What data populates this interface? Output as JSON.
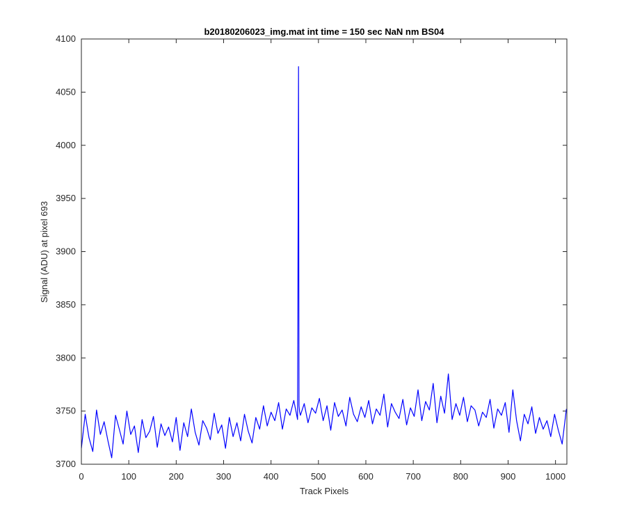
{
  "chart_data": {
    "type": "line",
    "title": "b20180206023_img.mat int time = 150 sec  NaN nm BS04",
    "xlabel": "Track Pixels",
    "ylabel": "Signal (ADU) at pixel 693",
    "xlim": [
      0,
      1024
    ],
    "ylim": [
      3700,
      4100
    ],
    "xticks": [
      0,
      100,
      200,
      300,
      400,
      500,
      600,
      700,
      800,
      900,
      1000
    ],
    "yticks": [
      3700,
      3750,
      3800,
      3850,
      3900,
      3950,
      4000,
      4050,
      4100
    ],
    "grid": false,
    "legend": "none",
    "line_color": "#0000ff",
    "series": [
      {
        "x": [
          0,
          8,
          16,
          24,
          32,
          40,
          48,
          56,
          64,
          72,
          80,
          88,
          96,
          104,
          112,
          120,
          128,
          136,
          144,
          152,
          160,
          168,
          176,
          184,
          192,
          200,
          208,
          216,
          224,
          232,
          240,
          248,
          256,
          264,
          272,
          280,
          288,
          296,
          304,
          312,
          320,
          328,
          336,
          344,
          352,
          360,
          368,
          376,
          384,
          392,
          400,
          408,
          416,
          424,
          432,
          440,
          448,
          456,
          458,
          459,
          460,
          462,
          470,
          478,
          486,
          494,
          502,
          510,
          518,
          526,
          534,
          542,
          550,
          558,
          566,
          574,
          582,
          590,
          598,
          606,
          614,
          622,
          630,
          638,
          646,
          654,
          662,
          670,
          678,
          686,
          694,
          702,
          710,
          718,
          726,
          734,
          742,
          750,
          758,
          766,
          774,
          782,
          790,
          798,
          806,
          814,
          822,
          830,
          838,
          846,
          854,
          862,
          870,
          878,
          886,
          894,
          902,
          910,
          918,
          926,
          934,
          942,
          950,
          958,
          966,
          974,
          982,
          990,
          998,
          1006,
          1014,
          1023
        ],
        "y": [
          3715,
          3747,
          3725,
          3712,
          3751,
          3728,
          3740,
          3722,
          3706,
          3746,
          3733,
          3719,
          3750,
          3728,
          3736,
          3711,
          3742,
          3725,
          3731,
          3745,
          3716,
          3738,
          3727,
          3735,
          3721,
          3744,
          3713,
          3739,
          3726,
          3752,
          3730,
          3718,
          3741,
          3734,
          3723,
          3748,
          3729,
          3737,
          3715,
          3744,
          3726,
          3739,
          3722,
          3747,
          3731,
          3720,
          3744,
          3733,
          3755,
          3736,
          3749,
          3741,
          3758,
          3733,
          3752,
          3746,
          3760,
          3742,
          4074,
          3755,
          3750,
          3746,
          3757,
          3739,
          3753,
          3748,
          3762,
          3741,
          3755,
          3732,
          3758,
          3745,
          3751,
          3736,
          3763,
          3747,
          3740,
          3754,
          3744,
          3760,
          3738,
          3752,
          3746,
          3766,
          3735,
          3757,
          3749,
          3743,
          3761,
          3737,
          3753,
          3745,
          3770,
          3741,
          3759,
          3751,
          3776,
          3739,
          3764,
          3748,
          3785,
          3742,
          3757,
          3746,
          3763,
          3740,
          3755,
          3751,
          3736,
          3749,
          3744,
          3761,
          3734,
          3752,
          3746,
          3758,
          3730,
          3770,
          3741,
          3722,
          3747,
          3738,
          3754,
          3729,
          3744,
          3733,
          3741,
          3726,
          3747,
          3732,
          3719,
          3752
        ]
      }
    ]
  }
}
